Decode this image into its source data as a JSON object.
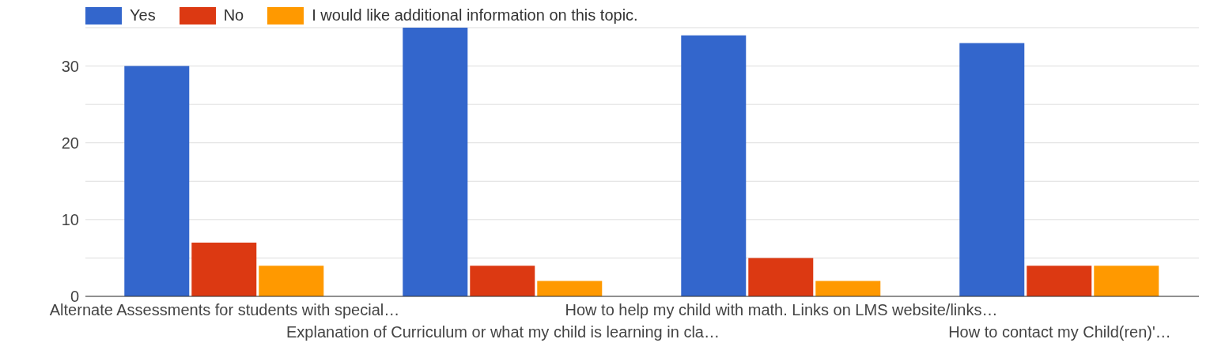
{
  "chart_data": {
    "type": "bar",
    "categories": [
      "Alternate Assessments for students with special…",
      "Explanation of Curriculum or what my child is learning in cla…",
      "How to help my child with math. Links on LMS website/links…",
      "How to contact my Child(ren)'…"
    ],
    "series": [
      {
        "name": "Yes",
        "color": "#3366cc",
        "values": [
          30,
          35,
          34,
          33
        ]
      },
      {
        "name": "No",
        "color": "#dc3912",
        "values": [
          7,
          4,
          5,
          4
        ]
      },
      {
        "name": "I would like additional information on this topic.",
        "color": "#ff9900",
        "values": [
          4,
          2,
          2,
          4
        ]
      }
    ],
    "ylim": [
      0,
      35
    ],
    "yticks": [
      0,
      {
        "value": 5,
        "label": null
      },
      10,
      {
        "value": 15,
        "label": null
      },
      20,
      {
        "value": 25,
        "label": null
      },
      30,
      {
        "value": 35,
        "label": null
      }
    ],
    "grid": "y",
    "legend": "top left"
  }
}
